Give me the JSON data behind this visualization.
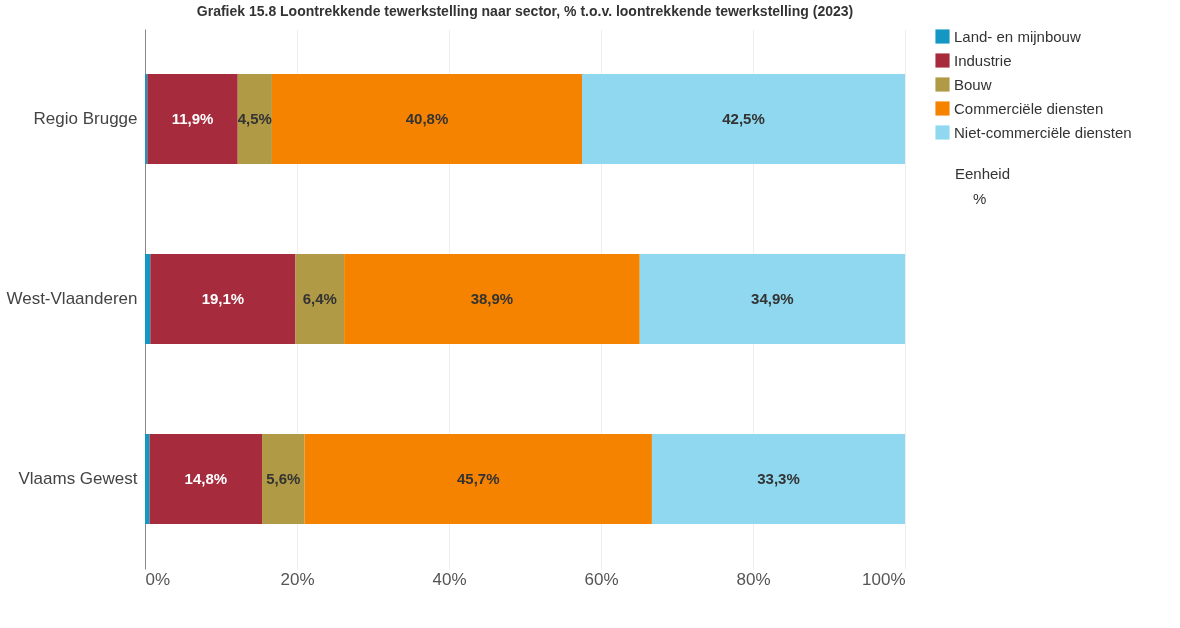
{
  "chart_data": {
    "type": "bar",
    "orientation": "horizontal",
    "stacked": true,
    "title": "Grafiek 15.8 Loontrekkende tewerkstelling naar sector, % t.o.v. loontrekkende tewerkstelling (2023)",
    "categories": [
      "Regio Brugge",
      "West-Vlaanderen",
      "Vlaams Gewest"
    ],
    "series": [
      {
        "name": "Land- en mijnbouw",
        "color": "#1597c3",
        "values": [
          0.3,
          0.7,
          0.6
        ],
        "value_labels": [
          null,
          null,
          null
        ]
      },
      {
        "name": "Industrie",
        "color": "#a52b3d",
        "values": [
          11.9,
          19.1,
          14.8
        ],
        "value_labels": [
          "11,9%",
          "19,1%",
          "14,8%"
        ]
      },
      {
        "name": "Bouw",
        "color": "#b19a45",
        "values": [
          4.5,
          6.4,
          5.6
        ],
        "value_labels": [
          "4,5%",
          "6,4%",
          "5,6%"
        ]
      },
      {
        "name": "Commerciële diensten",
        "color": "#f58300",
        "values": [
          40.8,
          38.9,
          45.7
        ],
        "value_labels": [
          "40,8%",
          "38,9%",
          "45,7%"
        ]
      },
      {
        "name": "Niet-commerciële diensten",
        "color": "#8fd8ef",
        "values": [
          42.5,
          34.9,
          33.3
        ],
        "value_labels": [
          "42,5%",
          "34,9%",
          "33,3%"
        ]
      }
    ],
    "xlim": [
      0,
      100
    ],
    "xticks": [
      {
        "value": 0,
        "label": "0%"
      },
      {
        "value": 20,
        "label": "20%"
      },
      {
        "value": 40,
        "label": "40%"
      },
      {
        "value": 60,
        "label": "60%"
      },
      {
        "value": 80,
        "label": "80%"
      },
      {
        "value": 100,
        "label": "100%"
      }
    ],
    "grid": "x",
    "legend": "top right",
    "annotations": [
      "Eenheid",
      "%"
    ]
  }
}
